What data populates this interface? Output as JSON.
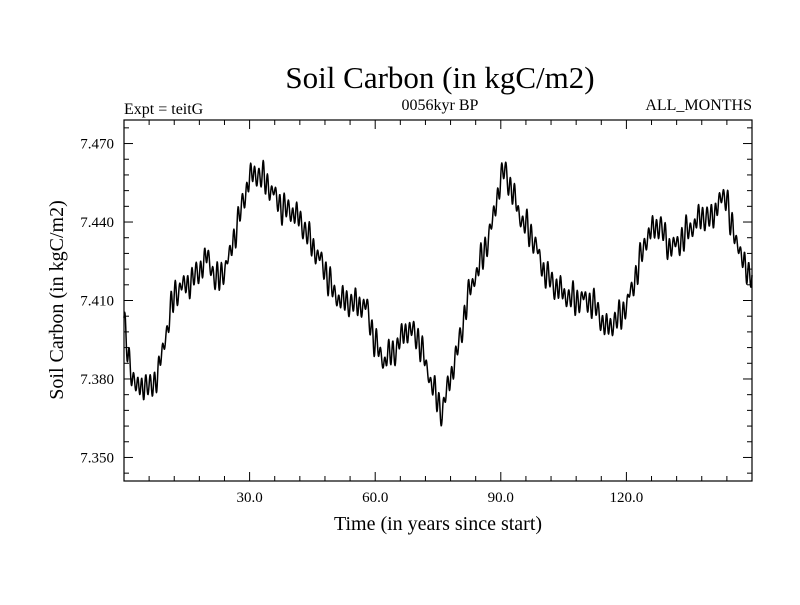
{
  "chart_data": {
    "type": "line",
    "title": "Soil Carbon (in kgC/m2)",
    "subtitle_left": "Expt = teitG",
    "subtitle_center": "0056kyr BP",
    "subtitle_right": "ALL_MONTHS",
    "xlabel": "Time (in years since start)",
    "ylabel": "Soil Carbon (in kgC/m2)",
    "xlim": [
      0,
      150
    ],
    "ylim": [
      7.341,
      7.479
    ],
    "x_ticks": [
      30,
      60,
      90,
      120
    ],
    "x_tick_labels": [
      "30.0",
      "60.0",
      "90.0",
      "120.0"
    ],
    "y_ticks": [
      7.35,
      7.38,
      7.41,
      7.44,
      7.47
    ],
    "y_tick_labels": [
      "7.350",
      "7.380",
      "7.410",
      "7.440",
      "7.470"
    ],
    "series": [
      {
        "name": "Soil Carbon",
        "color": "#000000",
        "seasonal_amplitude": 0.0045,
        "samples_per_year": 12,
        "trend_x": [
          0,
          1,
          3,
          5,
          6,
          8,
          10,
          12,
          15,
          18,
          20,
          22,
          25,
          28,
          30,
          32,
          35,
          38,
          40,
          43,
          45,
          48,
          50,
          53,
          55,
          58,
          60,
          62,
          65,
          67,
          70,
          72,
          74,
          75,
          76,
          77,
          78,
          80,
          82,
          85,
          88,
          90,
          91,
          93,
          95,
          98,
          100,
          103,
          105,
          108,
          110,
          113,
          115,
          118,
          120,
          122,
          125,
          128,
          130,
          132,
          135,
          138,
          140,
          142,
          144,
          145,
          147,
          148,
          150
        ],
        "trend_y": [
          7.401,
          7.388,
          7.377,
          7.378,
          7.375,
          7.381,
          7.398,
          7.412,
          7.416,
          7.422,
          7.426,
          7.417,
          7.426,
          7.444,
          7.458,
          7.459,
          7.452,
          7.446,
          7.444,
          7.438,
          7.432,
          7.421,
          7.413,
          7.41,
          7.408,
          7.408,
          7.394,
          7.386,
          7.392,
          7.399,
          7.396,
          7.387,
          7.376,
          7.371,
          7.366,
          7.374,
          7.381,
          7.394,
          7.41,
          7.424,
          7.44,
          7.456,
          7.459,
          7.451,
          7.441,
          7.432,
          7.423,
          7.415,
          7.412,
          7.411,
          7.41,
          7.407,
          7.4,
          7.402,
          7.408,
          7.419,
          7.434,
          7.44,
          7.431,
          7.43,
          7.438,
          7.442,
          7.44,
          7.448,
          7.451,
          7.437,
          7.43,
          7.423,
          7.421
        ]
      }
    ]
  }
}
